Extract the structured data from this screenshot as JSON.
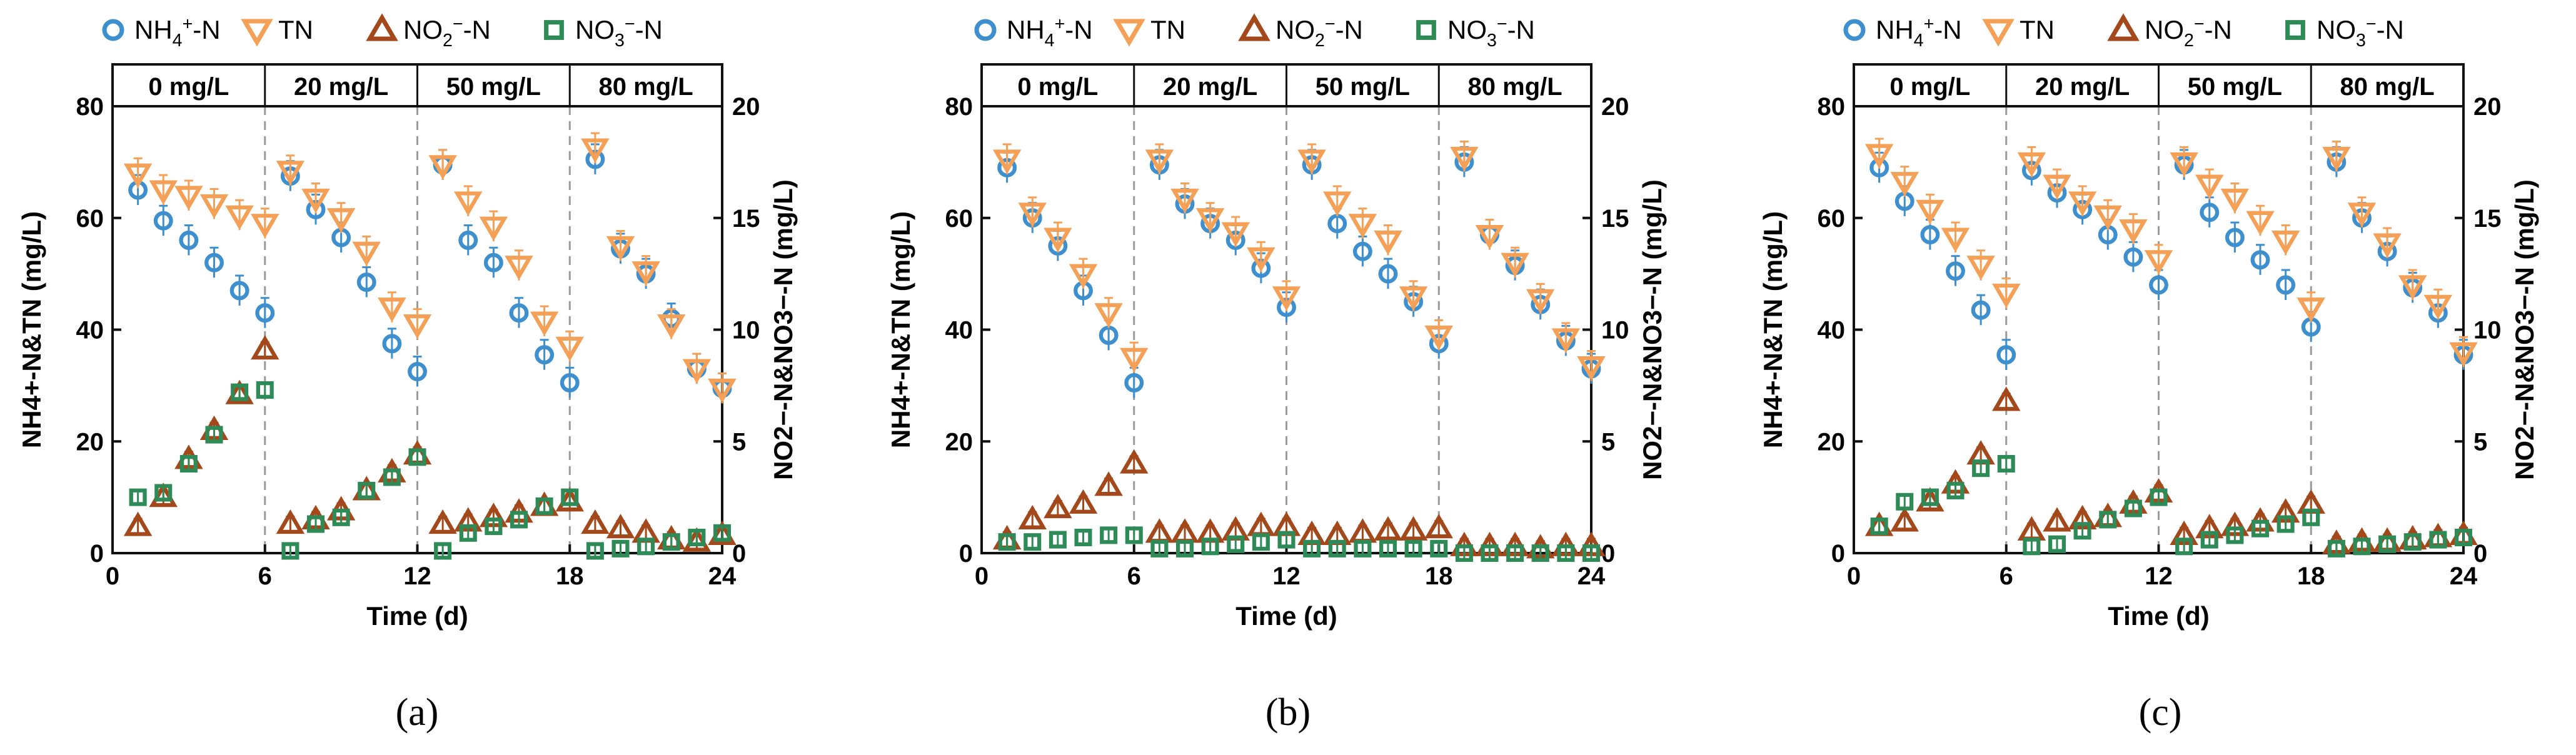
{
  "colors": {
    "nh4": "#3d8fce",
    "tn": "#f4a057",
    "no2": "#a3481a",
    "no3": "#2e8b57",
    "axis": "#111111",
    "divider": "#9a9a9a"
  },
  "legend": [
    {
      "key": "nh4",
      "marker": "circle",
      "text": "NH4+-N",
      "base": "NH",
      "sub": "4",
      "sup": "+",
      "suffix": "-N"
    },
    {
      "key": "tn",
      "marker": "triangle-down",
      "text": "TN",
      "base": "TN",
      "sub": "",
      "sup": "",
      "suffix": ""
    },
    {
      "key": "no2",
      "marker": "triangle-up",
      "text": "NO2−-N",
      "base": "NO",
      "sub": "2",
      "sup": "−",
      "suffix": "-N"
    },
    {
      "key": "no3",
      "marker": "square",
      "text": "NO3−-N",
      "base": "NO",
      "sub": "3",
      "sup": "−",
      "suffix": "-N"
    }
  ],
  "chart_data": [
    {
      "panel": "(a)",
      "type": "scatter",
      "xlabel": "Time (d)",
      "ylabel_left": "NH4+-N&TN (mg/L)",
      "ylabel_right": "NO2−-N&NO3−-N (mg/L)",
      "xlim": [
        0,
        24
      ],
      "ylim_left": [
        0,
        80
      ],
      "ylim_right": [
        0,
        20
      ],
      "xticks": [
        0,
        6,
        12,
        18,
        24
      ],
      "yticks_left": [
        0,
        20,
        40,
        60,
        80
      ],
      "yticks_right": [
        0,
        5,
        10,
        15,
        20
      ],
      "phases": [
        {
          "label": "0 mg/L",
          "start": 0,
          "end": 6
        },
        {
          "label": "20 mg/L",
          "start": 6,
          "end": 12
        },
        {
          "label": "50 mg/L",
          "start": 12,
          "end": 18
        },
        {
          "label": "80 mg/L",
          "start": 18,
          "end": 24
        }
      ],
      "series": [
        {
          "key": "nh4",
          "axis": "left",
          "name": "NH4+-N",
          "x": [
            1,
            2,
            3,
            4,
            5,
            6,
            7,
            8,
            9,
            10,
            11,
            12,
            13,
            14,
            15,
            16,
            17,
            18,
            19,
            20,
            21,
            22,
            23,
            24
          ],
          "y": [
            65,
            59.5,
            56,
            52,
            47,
            43,
            67.5,
            61.5,
            56.5,
            48.5,
            37.5,
            32.5,
            69.5,
            56,
            52,
            43,
            35.5,
            30.5,
            70.5,
            54.5,
            50,
            42,
            33,
            29.5
          ]
        },
        {
          "key": "tn",
          "axis": "left",
          "name": "TN",
          "x": [
            1,
            2,
            3,
            4,
            5,
            6,
            7,
            8,
            9,
            10,
            11,
            12,
            13,
            14,
            15,
            16,
            17,
            18,
            19,
            20,
            21,
            22,
            23,
            24
          ],
          "y": [
            68,
            65,
            64,
            62.5,
            60.5,
            59,
            68.5,
            63.5,
            60,
            54,
            44,
            41,
            69.5,
            63,
            58.5,
            51.5,
            41.5,
            37,
            72.5,
            55,
            50.5,
            41,
            33,
            29.5
          ]
        },
        {
          "key": "no2",
          "axis": "right",
          "name": "NO2−-N",
          "x": [
            1,
            2,
            3,
            4,
            5,
            6,
            7,
            8,
            9,
            10,
            11,
            12,
            13,
            14,
            15,
            16,
            17,
            18,
            19,
            20,
            21,
            22,
            23,
            24
          ],
          "y": [
            1.2,
            2.5,
            4.2,
            5.5,
            7.1,
            9.1,
            1.3,
            1.5,
            1.9,
            2.8,
            3.6,
            4.4,
            1.3,
            1.4,
            1.6,
            1.8,
            2.1,
            2.3,
            1.3,
            1.1,
            0.9,
            0.6,
            0.5,
            0.8
          ]
        },
        {
          "key": "no3",
          "axis": "right",
          "name": "NO3−-N",
          "x": [
            1,
            2,
            3,
            4,
            5,
            6,
            7,
            8,
            9,
            10,
            11,
            12,
            13,
            14,
            15,
            16,
            17,
            18,
            19,
            20,
            21,
            22,
            23,
            24
          ],
          "y": [
            2.5,
            2.7,
            4,
            5.3,
            7.2,
            7.3,
            0.1,
            1.3,
            1.6,
            2.8,
            3.4,
            4.3,
            0.1,
            0.9,
            1.2,
            1.5,
            2.1,
            2.5,
            0.1,
            0.2,
            0.3,
            0.5,
            0.7,
            0.9
          ]
        }
      ]
    },
    {
      "panel": "(b)",
      "type": "scatter",
      "xlabel": "Time (d)",
      "ylabel_left": "NH4+-N&TN (mg/L)",
      "ylabel_right": "NO2−-N&NO3−-N (mg/L)",
      "xlim": [
        0,
        24
      ],
      "ylim_left": [
        0,
        80
      ],
      "ylim_right": [
        0,
        20
      ],
      "xticks": [
        0,
        6,
        12,
        18,
        24
      ],
      "yticks_left": [
        0,
        20,
        40,
        60,
        80
      ],
      "yticks_right": [
        0,
        5,
        10,
        15,
        20
      ],
      "phases": [
        {
          "label": "0 mg/L",
          "start": 0,
          "end": 6
        },
        {
          "label": "20 mg/L",
          "start": 6,
          "end": 12
        },
        {
          "label": "50 mg/L",
          "start": 12,
          "end": 18
        },
        {
          "label": "80 mg/L",
          "start": 18,
          "end": 24
        }
      ],
      "series": [
        {
          "key": "nh4",
          "axis": "left",
          "name": "NH4+-N",
          "x": [
            1,
            2,
            3,
            4,
            5,
            6,
            7,
            8,
            9,
            10,
            11,
            12,
            13,
            14,
            15,
            16,
            17,
            18,
            19,
            20,
            21,
            22,
            23,
            24
          ],
          "y": [
            69,
            60,
            55,
            47,
            39,
            30.5,
            69.5,
            62.5,
            59,
            56,
            51,
            44,
            69.5,
            59,
            54,
            50,
            45,
            37.5,
            70,
            57,
            51.5,
            44.5,
            38,
            33
          ]
        },
        {
          "key": "tn",
          "axis": "left",
          "name": "TN",
          "x": [
            1,
            2,
            3,
            4,
            5,
            6,
            7,
            8,
            9,
            10,
            11,
            12,
            13,
            14,
            15,
            16,
            17,
            18,
            19,
            20,
            21,
            22,
            23,
            24
          ],
          "y": [
            70.5,
            61,
            56.5,
            50,
            43,
            35,
            70.5,
            63.5,
            60,
            57.5,
            53,
            46,
            70.5,
            63,
            59,
            56,
            46,
            39,
            71,
            57,
            52,
            45.5,
            38.5,
            33.5
          ]
        },
        {
          "key": "no2",
          "axis": "right",
          "name": "NO2−-N",
          "x": [
            1,
            2,
            3,
            4,
            5,
            6,
            7,
            8,
            9,
            10,
            11,
            12,
            13,
            14,
            15,
            16,
            17,
            18,
            19,
            20,
            21,
            22,
            23,
            24
          ],
          "y": [
            0.6,
            1.5,
            2,
            2.2,
            3,
            4,
            0.9,
            0.9,
            0.9,
            1,
            1.2,
            1.2,
            0.8,
            0.8,
            0.9,
            1,
            1,
            1.1,
            0.3,
            0.3,
            0.3,
            0.2,
            0.3,
            0.3
          ]
        },
        {
          "key": "no3",
          "axis": "right",
          "name": "NO3−-N",
          "x": [
            1,
            2,
            3,
            4,
            5,
            6,
            7,
            8,
            9,
            10,
            11,
            12,
            13,
            14,
            15,
            16,
            17,
            18,
            19,
            20,
            21,
            22,
            23,
            24
          ],
          "y": [
            0.5,
            0.5,
            0.6,
            0.7,
            0.8,
            0.8,
            0.2,
            0.2,
            0.3,
            0.4,
            0.5,
            0.6,
            0.2,
            0.2,
            0.2,
            0.2,
            0.2,
            0.2,
            0.0,
            0.0,
            0.0,
            0.0,
            0.0,
            0.0
          ]
        }
      ]
    },
    {
      "panel": "(c)",
      "type": "scatter",
      "xlabel": "Time (d)",
      "ylabel_left": "NH4+-N&TN (mg/L)",
      "ylabel_right": "NO2−-N&NO3−-N (mg/L)",
      "xlim": [
        0,
        24
      ],
      "ylim_left": [
        0,
        80
      ],
      "ylim_right": [
        0,
        20
      ],
      "xticks": [
        0,
        6,
        12,
        18,
        24
      ],
      "yticks_left": [
        0,
        20,
        40,
        60,
        80
      ],
      "yticks_right": [
        0,
        5,
        10,
        15,
        20
      ],
      "phases": [
        {
          "label": "0 mg/L",
          "start": 0,
          "end": 6
        },
        {
          "label": "20 mg/L",
          "start": 6,
          "end": 12
        },
        {
          "label": "50 mg/L",
          "start": 12,
          "end": 18
        },
        {
          "label": "80 mg/L",
          "start": 18,
          "end": 24
        }
      ],
      "series": [
        {
          "key": "nh4",
          "axis": "left",
          "name": "NH4+-N",
          "x": [
            1,
            2,
            3,
            4,
            5,
            6,
            7,
            8,
            9,
            10,
            11,
            12,
            13,
            14,
            15,
            16,
            17,
            18,
            19,
            20,
            21,
            22,
            23,
            24
          ],
          "y": [
            69,
            63,
            57,
            50.5,
            43.5,
            35.5,
            68.5,
            64.5,
            61.5,
            57,
            53,
            48,
            69.5,
            61,
            56.5,
            52.5,
            48,
            40.5,
            70,
            60,
            54,
            47.5,
            43,
            35.5
          ]
        },
        {
          "key": "tn",
          "axis": "left",
          "name": "TN",
          "x": [
            1,
            2,
            3,
            4,
            5,
            6,
            7,
            8,
            9,
            10,
            11,
            12,
            13,
            14,
            15,
            16,
            17,
            18,
            19,
            20,
            21,
            22,
            23,
            24
          ],
          "y": [
            71.5,
            66.5,
            61.5,
            56.5,
            51.5,
            46.5,
            70,
            66,
            63,
            60.5,
            58,
            52.5,
            70,
            66,
            63.5,
            59.5,
            56,
            44,
            71,
            61,
            55.5,
            48,
            44.5,
            36
          ]
        },
        {
          "key": "no2",
          "axis": "right",
          "name": "NO2−-N",
          "x": [
            1,
            2,
            3,
            4,
            5,
            6,
            7,
            8,
            9,
            10,
            11,
            12,
            13,
            14,
            15,
            16,
            17,
            18,
            19,
            20,
            21,
            22,
            23,
            24
          ],
          "y": [
            1.2,
            1.4,
            2.3,
            3.1,
            4.4,
            6.8,
            1,
            1.4,
            1.5,
            1.6,
            2.2,
            2.7,
            0.8,
            1.1,
            1.2,
            1.4,
            1.8,
            2.2,
            0.4,
            0.5,
            0.5,
            0.6,
            0.7,
            0.8
          ]
        },
        {
          "key": "no3",
          "axis": "right",
          "name": "NO3−-N",
          "x": [
            1,
            2,
            3,
            4,
            5,
            6,
            7,
            8,
            9,
            10,
            11,
            12,
            13,
            14,
            15,
            16,
            17,
            18,
            19,
            20,
            21,
            22,
            23,
            24
          ],
          "y": [
            1.2,
            2.3,
            2.5,
            2.8,
            3.8,
            4,
            0.3,
            0.4,
            1,
            1.5,
            2,
            2.5,
            0.3,
            0.6,
            0.8,
            1.1,
            1.3,
            1.6,
            0.2,
            0.3,
            0.4,
            0.5,
            0.6,
            0.7
          ]
        }
      ]
    }
  ]
}
